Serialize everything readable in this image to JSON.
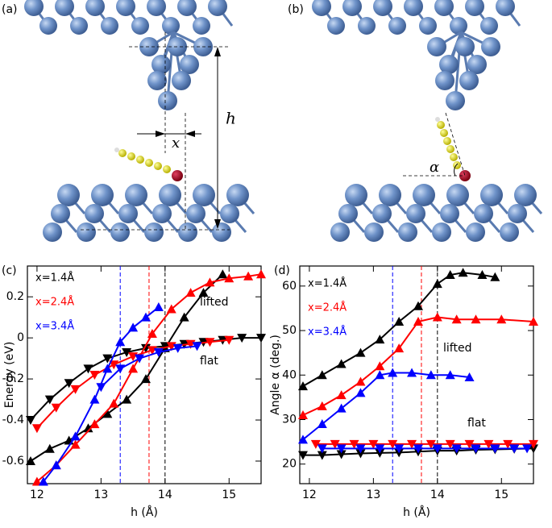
{
  "panels": [
    {
      "label": "(a)",
      "annotations": [
        "x",
        "h"
      ]
    },
    {
      "label": "(b)",
      "annotations": [
        "α"
      ]
    }
  ],
  "chart_data": [
    {
      "type": "line",
      "label": "(c)",
      "x_label": "h (Å)",
      "y_label": "Energy (eV)",
      "xlim": [
        11.85,
        15.5
      ],
      "xticks": [
        12,
        13,
        14,
        15
      ],
      "ylim": [
        -0.71,
        0.35
      ],
      "yticks": [
        -0.6,
        -0.4,
        -0.2,
        0,
        0.2
      ],
      "annotations": [
        "lifted",
        "flat"
      ],
      "vlines": [
        {
          "x": 13.3,
          "color": "#0000ff"
        },
        {
          "x": 13.75,
          "color": "#ff0000"
        },
        {
          "x": 14.0,
          "color": "#000000"
        }
      ],
      "series": [
        {
          "name": "x=1.4Å",
          "color": "#000000",
          "lifted": {
            "x": [
              11.9,
              12.2,
              12.5,
              12.8,
              13.1,
              13.4,
              13.7,
              14.0,
              14.3,
              14.6,
              14.9
            ],
            "values": [
              -0.6,
              -0.54,
              -0.5,
              -0.44,
              -0.37,
              -0.3,
              -0.2,
              -0.05,
              0.1,
              0.22,
              0.31
            ]
          },
          "flat": {
            "x": [
              11.9,
              12.2,
              12.5,
              12.8,
              13.1,
              13.4,
              13.7,
              14.0,
              14.3,
              14.6,
              14.9,
              15.2,
              15.5
            ],
            "values": [
              -0.4,
              -0.3,
              -0.22,
              -0.15,
              -0.1,
              -0.07,
              -0.05,
              -0.04,
              -0.03,
              -0.02,
              -0.01,
              0,
              0
            ]
          }
        },
        {
          "name": "x=2.4Å",
          "color": "#ff0000",
          "lifted": {
            "x": [
              12.0,
              12.3,
              12.6,
              12.9,
              13.2,
              13.5,
              13.8,
              14.1,
              14.4,
              14.7,
              15.0,
              15.3,
              15.5
            ],
            "values": [
              -0.7,
              -0.62,
              -0.52,
              -0.42,
              -0.32,
              -0.15,
              0.02,
              0.14,
              0.22,
              0.27,
              0.29,
              0.3,
              0.31
            ]
          },
          "flat": {
            "x": [
              12.0,
              12.3,
              12.6,
              12.9,
              13.2,
              13.5,
              13.8,
              14.1,
              14.4,
              14.7,
              15.0
            ],
            "values": [
              -0.44,
              -0.34,
              -0.25,
              -0.18,
              -0.13,
              -0.09,
              -0.06,
              -0.04,
              -0.03,
              -0.02,
              -0.01
            ]
          }
        },
        {
          "name": "x=3.4Å",
          "color": "#0000ff",
          "lifted": {
            "x": [
              12.1,
              12.3,
              12.6,
              12.9,
              13.1,
              13.3,
              13.5,
              13.7,
              13.9
            ],
            "values": [
              -0.7,
              -0.62,
              -0.48,
              -0.3,
              -0.15,
              -0.02,
              0.05,
              0.1,
              0.15
            ]
          },
          "flat": {
            "x": [
              13.0,
              13.3,
              13.6,
              13.9,
              14.2,
              14.5
            ],
            "values": [
              -0.24,
              -0.15,
              -0.1,
              -0.07,
              -0.05,
              -0.04
            ]
          }
        }
      ]
    },
    {
      "type": "line",
      "label": "(d)",
      "x_label": "h (Å)",
      "y_label": "Angle α (deg.)",
      "xlim": [
        11.85,
        15.5
      ],
      "xticks": [
        12,
        13,
        14,
        15
      ],
      "ylim": [
        15.6,
        64.5
      ],
      "yticks": [
        20,
        30,
        40,
        50,
        60
      ],
      "annotations": [
        "lifted",
        "flat"
      ],
      "vlines": [
        {
          "x": 13.3,
          "color": "#0000ff"
        },
        {
          "x": 13.75,
          "color": "#ff0000"
        },
        {
          "x": 14.0,
          "color": "#000000"
        }
      ],
      "series": [
        {
          "name": "x=1.4Å",
          "color": "#000000",
          "lifted": {
            "x": [
              11.9,
              12.2,
              12.5,
              12.8,
              13.1,
              13.4,
              13.7,
              14.0,
              14.2,
              14.4,
              14.7,
              14.9
            ],
            "values": [
              37.5,
              40,
              42.5,
              45,
              48,
              52,
              55.5,
              60.5,
              62.5,
              63,
              62.5,
              62
            ]
          },
          "flat": {
            "x": [
              11.9,
              12.2,
              12.5,
              12.8,
              13.1,
              13.4,
              13.7,
              14.0,
              14.3,
              14.6,
              14.9,
              15.2,
              15.5
            ],
            "values": [
              22,
              22,
              22.2,
              22.4,
              22.5,
              22.6,
              22.8,
              23,
              23,
              23.2,
              23.3,
              23.4,
              23.5
            ]
          }
        },
        {
          "name": "x=2.4Å",
          "color": "#ff0000",
          "lifted": {
            "x": [
              11.9,
              12.2,
              12.5,
              12.8,
              13.1,
              13.4,
              13.7,
              14.0,
              14.3,
              14.6,
              15.0,
              15.5
            ],
            "values": [
              31,
              33,
              35.5,
              38.5,
              42,
              46,
              52,
              53,
              52.5,
              52.5,
              52.5,
              52
            ]
          },
          "flat": {
            "x": [
              12.1,
              12.4,
              12.7,
              13.0,
              13.3,
              13.6,
              13.9,
              14.2,
              14.5,
              14.8,
              15.1,
              15.5
            ],
            "values": [
              24.5,
              24.5,
              24.5,
              24.5,
              24.5,
              24.5,
              24.5,
              24.5,
              24.5,
              24.5,
              24.5,
              24.5
            ]
          }
        },
        {
          "name": "x=3.4Å",
          "color": "#0000ff",
          "lifted": {
            "x": [
              11.9,
              12.2,
              12.5,
              12.8,
              13.1,
              13.3,
              13.6,
              13.9,
              14.2,
              14.5
            ],
            "values": [
              25.5,
              29,
              32.5,
              36,
              40,
              40.5,
              40.5,
              40,
              40,
              39.5
            ]
          },
          "flat": {
            "x": [
              12.2,
              12.5,
              12.8,
              13.1,
              13.4,
              13.7,
              14.0,
              14.3,
              14.6,
              14.9,
              15.2,
              15.4
            ],
            "values": [
              23.5,
              23.5,
              23.5,
              23.5,
              23.5,
              23.5,
              23.5,
              23.5,
              23.5,
              23.5,
              23.5,
              23.5
            ]
          }
        }
      ]
    }
  ]
}
